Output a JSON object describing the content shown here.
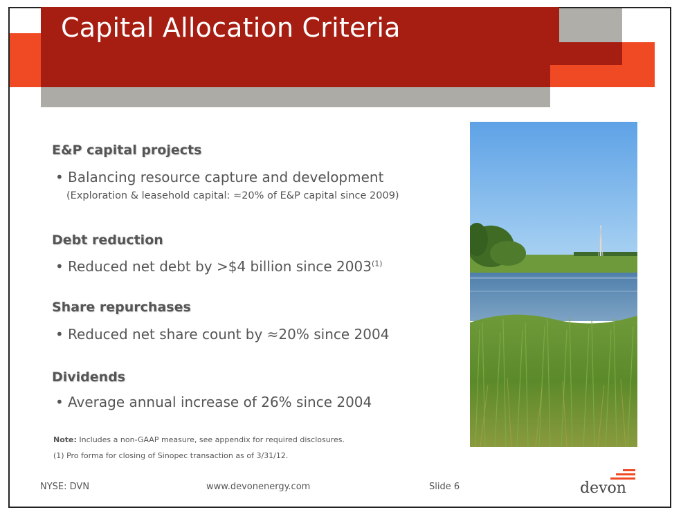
{
  "slide": {
    "title": "Capital Allocation Criteria"
  },
  "sections": [
    {
      "heading": "E&P capital projects",
      "bullet": "Balancing resource capture and development",
      "note": "(Exploration & leasehold capital: ≈20% of E&P capital since 2009)"
    },
    {
      "heading": "Debt reduction",
      "bullet": "Reduced net debt by >$4 billion since 2003",
      "bullet_sup": "(1)"
    },
    {
      "heading": "Share repurchases",
      "bullet": "Reduced net share count by ≈20% since 2004"
    },
    {
      "heading": "Dividends",
      "bullet": "Average annual increase of 26% since 2004"
    }
  ],
  "footnotes": {
    "note_label": "Note:",
    "note_text": " Includes a non-GAAP measure, see appendix for required disclosures.",
    "fn1": "(1) Pro forma for closing of Sinopec transaction as of 3/31/12."
  },
  "footer": {
    "ticker": "NYSE: DVN",
    "website": "www.devonenergy.com",
    "slide_number": "Slide 6",
    "logo_text": "devon"
  },
  "photo": {
    "icon": "landscape-photo-pond-grass-drilling-rig"
  },
  "colors": {
    "brand_dark_red": "#a61d12",
    "brand_orange": "#f04a24",
    "brand_gray": "#acaba5",
    "text_gray": "#555555"
  }
}
